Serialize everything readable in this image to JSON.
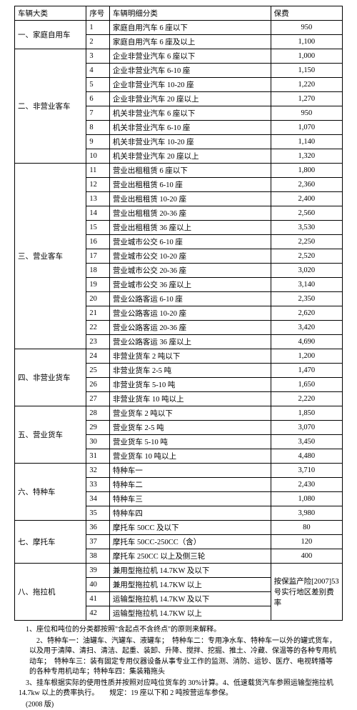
{
  "headers": {
    "category": "车辆大类",
    "seq": "序号",
    "detail": "车辆明细分类",
    "premium": "保费"
  },
  "rows": [
    {
      "cat": "一、家庭自用车",
      "seq": "1",
      "detail": "家庭自用汽车 6 座以下",
      "premium": "950",
      "rowspan": 2
    },
    {
      "seq": "2",
      "detail": "家庭自用汽车 6 座及以上",
      "premium": "1,100"
    },
    {
      "cat": "二、非营业客车",
      "seq": "3",
      "detail": "企业非营业汽车 6 座以下",
      "premium": "1,000",
      "rowspan": 8
    },
    {
      "seq": "4",
      "detail": "企业非营业汽车 6-10 座",
      "premium": "1,150"
    },
    {
      "seq": "5",
      "detail": "企业非营业汽车 10-20 座",
      "premium": "1,220"
    },
    {
      "seq": "6",
      "detail": "企业非营业汽车 20 座以上",
      "premium": "1,270"
    },
    {
      "seq": "7",
      "detail": "机关非营业汽车 6 座以下",
      "premium": "950"
    },
    {
      "seq": "8",
      "detail": "机关非营业汽车 6-10 座",
      "premium": "1,070"
    },
    {
      "seq": "9",
      "detail": "机关非营业汽车 10-20 座",
      "premium": "1,140"
    },
    {
      "seq": "10",
      "detail": "机关非营业汽车 20 座以上",
      "premium": "1,320"
    },
    {
      "cat": "三、营业客车",
      "seq": "11",
      "detail": "营业出租租赁 6 座以下",
      "premium": "1,800",
      "rowspan": 13
    },
    {
      "seq": "12",
      "detail": "营业出租租赁 6-10 座",
      "premium": "2,360"
    },
    {
      "seq": "13",
      "detail": "营业出租租赁 10-20 座",
      "premium": "2,400"
    },
    {
      "seq": "14",
      "detail": "营业出租租赁 20-36 座",
      "premium": "2,560"
    },
    {
      "seq": "15",
      "detail": "营业出租租赁 36 座以上",
      "premium": "3,530"
    },
    {
      "seq": "16",
      "detail": "营业城市公交 6-10 座",
      "premium": "2,250"
    },
    {
      "seq": "17",
      "detail": "营业城市公交 10-20 座",
      "premium": "2,520"
    },
    {
      "seq": "18",
      "detail": "营业城市公交 20-36 座",
      "premium": "3,020"
    },
    {
      "seq": "19",
      "detail": "营业城市公交 36 座以上",
      "premium": "3,140"
    },
    {
      "seq": "20",
      "detail": "营业公路客运 6-10 座",
      "premium": "2,350"
    },
    {
      "seq": "21",
      "detail": "营业公路客运 10-20 座",
      "premium": "2,620"
    },
    {
      "seq": "22",
      "detail": "营业公路客运 20-36 座",
      "premium": "3,420"
    },
    {
      "seq": "23",
      "detail": "营业公路客运 36 座以上",
      "premium": "4,690"
    },
    {
      "cat": "四、非营业货车",
      "seq": "24",
      "detail": "非营业货车 2 吨以下",
      "premium": "1,200",
      "rowspan": 4
    },
    {
      "seq": "25",
      "detail": "非营业货车 2-5 吨",
      "premium": "1,470"
    },
    {
      "seq": "26",
      "detail": "非营业货车 5-10 吨",
      "premium": "1,650"
    },
    {
      "seq": "27",
      "detail": "非营业货车 10 吨以上",
      "premium": "2,220"
    },
    {
      "cat": "五、营业货车",
      "seq": "28",
      "detail": "营业货车 2 吨以下",
      "premium": "1,850",
      "rowspan": 4
    },
    {
      "seq": "29",
      "detail": "营业货车 2-5 吨",
      "premium": "3,070"
    },
    {
      "seq": "30",
      "detail": "营业货车 5-10 吨",
      "premium": "3,450"
    },
    {
      "seq": "31",
      "detail": "营业货车 10 吨以上",
      "premium": "4,480"
    },
    {
      "cat": "六、特种车",
      "seq": "32",
      "detail": "特种车一",
      "premium": "3,710",
      "rowspan": 4
    },
    {
      "seq": "33",
      "detail": "特种车二",
      "premium": "2,430"
    },
    {
      "seq": "34",
      "detail": "特种车三",
      "premium": "1,080"
    },
    {
      "seq": "35",
      "detail": "特种车四",
      "premium": "3,980"
    },
    {
      "cat": "七、摩托车",
      "seq": "36",
      "detail": "摩托车 50CC 及以下",
      "premium": "80",
      "rowspan": 3
    },
    {
      "seq": "37",
      "detail": "摩托车 50CC-250CC（含）",
      "premium": "120"
    },
    {
      "seq": "38",
      "detail": "摩托车 250CC 以上及侧三轮",
      "premium": "400"
    },
    {
      "cat": "八、拖拉机",
      "seq": "39",
      "detail": "兼用型拖拉机 14.7KW 及以下",
      "premium": "按保监产险[2007]53 号实行地区差别费率",
      "rowspan": 4,
      "premiumRowspan": 4
    },
    {
      "seq": "40",
      "detail": "兼用型拖拉机 14.7KW 以上"
    },
    {
      "seq": "41",
      "detail": "运输型拖拉机 14.7KW 及以下"
    },
    {
      "seq": "42",
      "detail": "运输型拖拉机 14.7KW 以上"
    }
  ],
  "notes": [
    "1、座位和吨位的分类都按照\"含起点不含终点\"的原则来解释。",
    "2、特种车一：油罐车、汽罐车、液罐车；　特种车二：专用净水车、特种车一以外的罐式货车，以及用于清障、清扫、清洁、起重、装卸、升降、搅拌、挖掘、推土、冷藏、保温等的各种专用机动车；　特种车三：装有固定专用仪器设备从事专业工作的监测、消防、运钞、医疗、电视转播等的各种专用机动车；特种车四：集装箱拖头",
    "3、挂车根据实际的使用性质并按照对应吨位货车的 30%计算。4、低速载货汽车参照运输型拖拉机 14.7kw 以上的费率执行。　　规定：19 座以下和 2 吨按营运车参保。",
    "(2008 版)"
  ]
}
